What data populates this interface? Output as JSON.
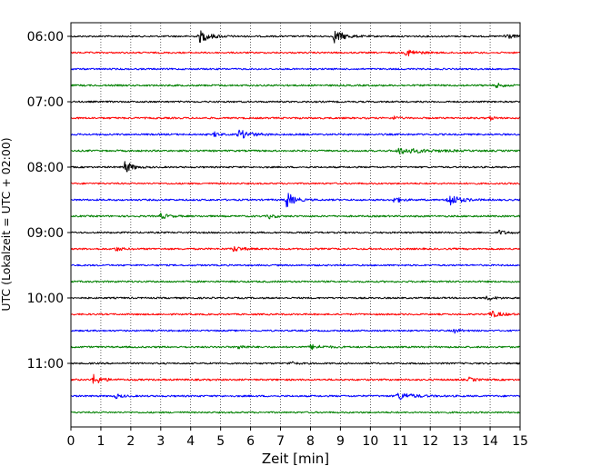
{
  "chart_data": {
    "type": "line",
    "subtype": "helicorder-seismogram",
    "title": "",
    "xlabel": "Zeit  [min]",
    "ylabel": "UTC (Lokalzeit = UTC + 02:00)",
    "xlim": [
      0,
      15
    ],
    "x_ticks": [
      0,
      1,
      2,
      3,
      4,
      5,
      6,
      7,
      8,
      9,
      10,
      11,
      12,
      13,
      14,
      15
    ],
    "x_tick_labels": [
      "0",
      "1",
      "2",
      "3",
      "4",
      "5",
      "6",
      "7",
      "8",
      "9",
      "10",
      "11",
      "12",
      "13",
      "14",
      "15"
    ],
    "y_tick_labels": [
      "06:00",
      "07:00",
      "08:00",
      "09:00",
      "10:00",
      "11:00"
    ],
    "minutes_per_trace": 15,
    "grid": {
      "x": true,
      "y": false,
      "style": "dotted"
    },
    "colors": [
      "#000000",
      "#ff0000",
      "#0000ff",
      "#008000"
    ],
    "traces": [
      {
        "start": "06:00",
        "color": "#000000",
        "noise": 0.55,
        "events": [
          {
            "t": 4.3,
            "amp": 4.0,
            "dur": 0.55
          },
          {
            "t": 8.8,
            "amp": 4.4,
            "dur": 0.5
          },
          {
            "t": 14.5,
            "amp": 2.5,
            "dur": 0.35
          }
        ]
      },
      {
        "start": "06:15",
        "color": "#ff0000",
        "noise": 0.55,
        "events": [
          {
            "t": 11.2,
            "amp": 2.6,
            "dur": 0.5
          }
        ]
      },
      {
        "start": "06:30",
        "color": "#0000ff",
        "noise": 0.55,
        "events": []
      },
      {
        "start": "06:45",
        "color": "#008000",
        "noise": 0.6,
        "events": [
          {
            "t": 14.2,
            "amp": 1.4,
            "dur": 0.4
          }
        ]
      },
      {
        "start": "07:00",
        "color": "#000000",
        "noise": 0.55,
        "events": []
      },
      {
        "start": "07:15",
        "color": "#ff0000",
        "noise": 0.6,
        "events": [
          {
            "t": 10.8,
            "amp": 1.3,
            "dur": 0.2
          },
          {
            "t": 14.0,
            "amp": 1.4,
            "dur": 0.2
          }
        ]
      },
      {
        "start": "07:30",
        "color": "#0000ff",
        "noise": 0.6,
        "events": [
          {
            "t": 4.8,
            "amp": 2.0,
            "dur": 0.2
          },
          {
            "t": 5.6,
            "amp": 3.2,
            "dur": 0.6
          }
        ]
      },
      {
        "start": "07:45",
        "color": "#008000",
        "noise": 0.6,
        "events": [
          {
            "t": 10.9,
            "amp": 2.0,
            "dur": 1.4
          }
        ]
      },
      {
        "start": "08:00",
        "color": "#000000",
        "noise": 0.55,
        "events": [
          {
            "t": 1.8,
            "amp": 4.5,
            "dur": 0.35
          }
        ]
      },
      {
        "start": "08:15",
        "color": "#ff0000",
        "noise": 0.55,
        "events": []
      },
      {
        "start": "08:30",
        "color": "#0000ff",
        "noise": 0.6,
        "events": [
          {
            "t": 7.2,
            "amp": 6.0,
            "dur": 0.35
          },
          {
            "t": 10.8,
            "amp": 2.4,
            "dur": 0.3
          },
          {
            "t": 12.6,
            "amp": 5.0,
            "dur": 0.5
          }
        ]
      },
      {
        "start": "08:45",
        "color": "#008000",
        "noise": 0.6,
        "events": [
          {
            "t": 3.0,
            "amp": 1.8,
            "dur": 0.4
          },
          {
            "t": 6.6,
            "amp": 1.6,
            "dur": 0.3
          }
        ]
      },
      {
        "start": "09:00",
        "color": "#000000",
        "noise": 0.55,
        "events": [
          {
            "t": 14.3,
            "amp": 1.5,
            "dur": 0.4
          }
        ]
      },
      {
        "start": "09:15",
        "color": "#ff0000",
        "noise": 0.6,
        "events": [
          {
            "t": 1.5,
            "amp": 1.4,
            "dur": 0.3
          },
          {
            "t": 5.4,
            "amp": 1.8,
            "dur": 0.5
          }
        ]
      },
      {
        "start": "09:30",
        "color": "#0000ff",
        "noise": 0.55,
        "events": []
      },
      {
        "start": "09:45",
        "color": "#008000",
        "noise": 0.6,
        "events": []
      },
      {
        "start": "10:00",
        "color": "#000000",
        "noise": 0.55,
        "events": [
          {
            "t": 13.9,
            "amp": 1.6,
            "dur": 0.4
          }
        ]
      },
      {
        "start": "10:15",
        "color": "#ff0000",
        "noise": 0.55,
        "events": [
          {
            "t": 14.0,
            "amp": 2.2,
            "dur": 0.6
          }
        ]
      },
      {
        "start": "10:30",
        "color": "#0000ff",
        "noise": 0.55,
        "events": [
          {
            "t": 12.8,
            "amp": 1.4,
            "dur": 0.3
          }
        ]
      },
      {
        "start": "10:45",
        "color": "#008000",
        "noise": 0.6,
        "events": [
          {
            "t": 5.6,
            "amp": 1.7,
            "dur": 0.3
          },
          {
            "t": 8.0,
            "amp": 1.5,
            "dur": 0.6
          }
        ]
      },
      {
        "start": "11:00",
        "color": "#000000",
        "noise": 0.55,
        "events": [
          {
            "t": 7.3,
            "amp": 1.3,
            "dur": 0.3
          }
        ]
      },
      {
        "start": "11:15",
        "color": "#ff0000",
        "noise": 0.6,
        "events": [
          {
            "t": 0.75,
            "amp": 3.5,
            "dur": 0.4
          },
          {
            "t": 13.3,
            "amp": 1.3,
            "dur": 0.3
          }
        ]
      },
      {
        "start": "11:30",
        "color": "#0000ff",
        "noise": 0.6,
        "events": [
          {
            "t": 1.5,
            "amp": 1.4,
            "dur": 0.3
          },
          {
            "t": 10.9,
            "amp": 2.8,
            "dur": 0.7
          }
        ]
      },
      {
        "start": "11:45",
        "color": "#008000",
        "noise": 0.55,
        "events": []
      }
    ]
  }
}
